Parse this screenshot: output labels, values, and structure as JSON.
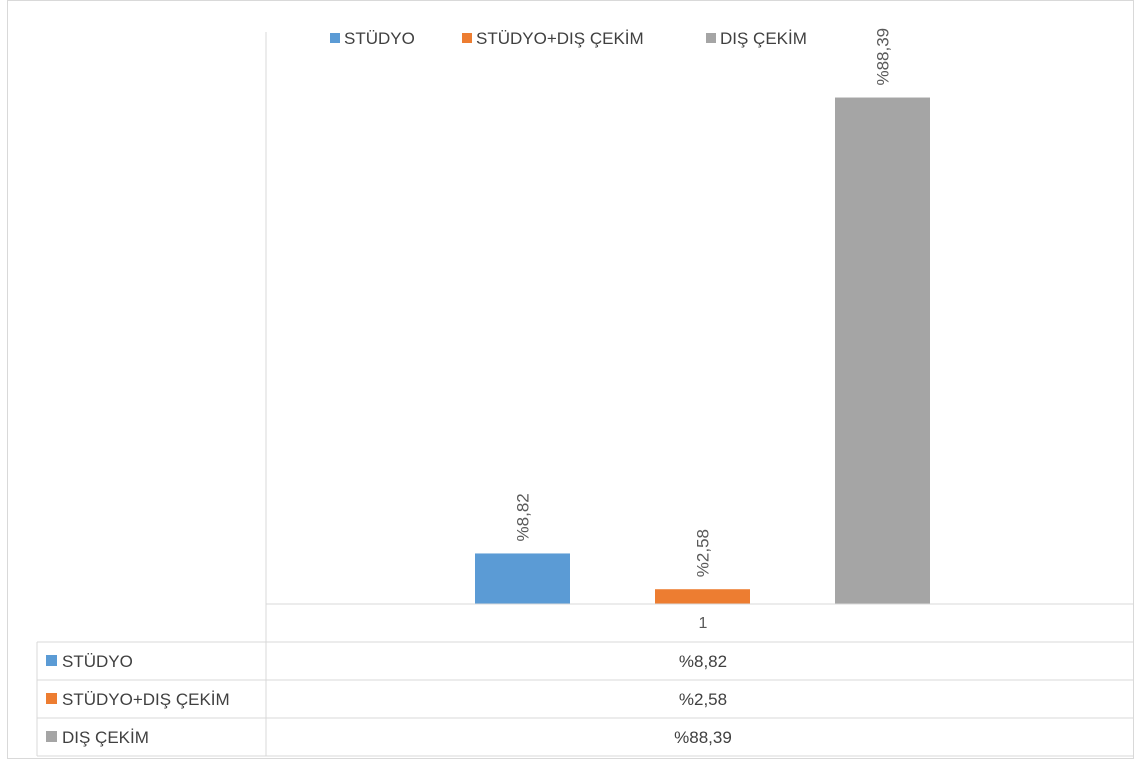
{
  "chart_data": {
    "type": "bar",
    "categories": [
      "1"
    ],
    "series": [
      {
        "name": "STÜDYO",
        "values": [
          8.82
        ],
        "label": "%8,82",
        "color": "#5b9bd5"
      },
      {
        "name": "STÜDYO+DIŞ ÇEKİM",
        "values": [
          2.58
        ],
        "label": "%2,58",
        "color": "#ed7d31"
      },
      {
        "name": "DIŞ ÇEKİM",
        "values": [
          88.39
        ],
        "label": "%88,39",
        "color": "#a5a5a5"
      }
    ],
    "ylim": [
      0,
      100
    ],
    "legend": "top",
    "data_table": true,
    "grid": false
  }
}
